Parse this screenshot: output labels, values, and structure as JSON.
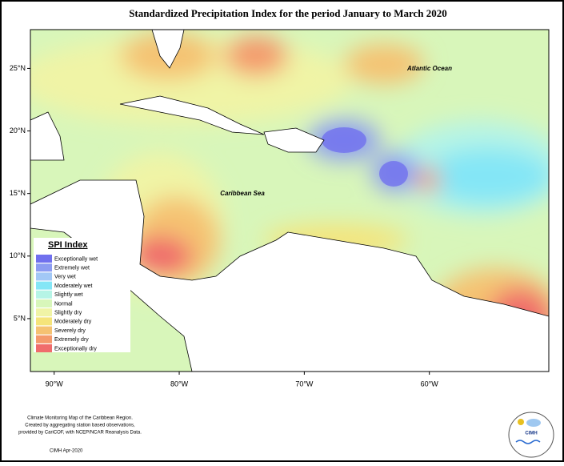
{
  "map": {
    "title": "Standardized Precipitation Index for the period January to March 2020",
    "xlim": [
      -91.9,
      -50.45
    ],
    "ylim": [
      0.77,
      28.1
    ],
    "xticks": [
      {
        "value": -90,
        "label": "90°W"
      },
      {
        "value": -80,
        "label": "80°W"
      },
      {
        "value": -70,
        "label": "70°W"
      },
      {
        "value": -60,
        "label": "60°W"
      }
    ],
    "yticks": [
      {
        "value": 25,
        "label": "25°N"
      },
      {
        "value": 20,
        "label": "20°N"
      },
      {
        "value": 15,
        "label": "15°N"
      },
      {
        "value": 10,
        "label": "10°N"
      },
      {
        "value": 5,
        "label": "5°N"
      }
    ],
    "labels": [
      "Atlantic Ocean",
      "Caribbean Sea"
    ],
    "legend": {
      "title": "SPI Index",
      "items": [
        {
          "label": "Exceptionally wet",
          "color": "#7070ee"
        },
        {
          "label": "Extremely wet",
          "color": "#8c9cf2"
        },
        {
          "label": "Very wet",
          "color": "#a2c8f6"
        },
        {
          "label": "Moderately wet",
          "color": "#84e6f6"
        },
        {
          "label": "Slightly wet",
          "color": "#b6f4e6"
        },
        {
          "label": "Normal",
          "color": "#d8f6ba"
        },
        {
          "label": "Slightly dry",
          "color": "#f0f4a6"
        },
        {
          "label": "Moderately dry",
          "color": "#f5e47a"
        },
        {
          "label": "Severely dry",
          "color": "#f5c272"
        },
        {
          "label": "Extremely dry",
          "color": "#f49a6c"
        },
        {
          "label": "Exceptionally dry",
          "color": "#f06c6c"
        }
      ]
    }
  },
  "footer": {
    "notes": [
      "Climate Monitoring Map of the Caribbean Region.",
      "Created by aggregating station based observations,",
      "provided by CariCOF, with NCEP/NCAR Reanalysis Data."
    ],
    "credit": "CIMH Apr-2020",
    "logo": "CIMH"
  }
}
